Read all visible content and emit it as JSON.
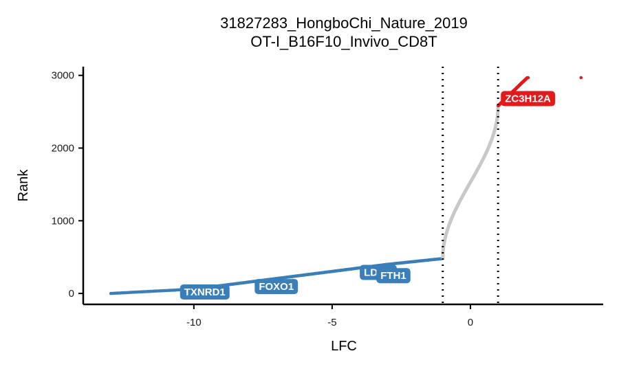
{
  "chart_data": {
    "type": "scatter",
    "title": "31827283_HongboChi_Nature_2019",
    "subtitle": "OT-I_B16F10_Invivo_CD8T",
    "xlabel": "LFC",
    "ylabel": "Rank",
    "xlim": [
      -14,
      4.8
    ],
    "ylim": [
      -150,
      3120
    ],
    "xticks": [
      -10,
      -5,
      0
    ],
    "yticks": [
      0,
      1000,
      2000,
      3000
    ],
    "grid": false,
    "legend": "none",
    "n_points": 2970,
    "thresholds": [
      -1,
      1
    ],
    "colors": {
      "down": "#3a7fb9",
      "neutral": "#c8c8c8",
      "up": "#e31a1c"
    },
    "series": [
      {
        "group": "down",
        "x_range": [
          -13,
          -1
        ],
        "rank_range": [
          0,
          480
        ],
        "count": 481
      },
      {
        "group": "neutral",
        "x_range": [
          -1,
          1
        ],
        "rank_range": [
          481,
          2580
        ],
        "count": 2100
      },
      {
        "group": "up",
        "x_range": [
          1,
          4
        ],
        "rank_range": [
          2581,
          2969
        ],
        "count": 389
      }
    ],
    "labels": [
      {
        "text": "TXNRD1",
        "x": -10.5,
        "y": 20,
        "group": "down"
      },
      {
        "text": "FOXO1",
        "x": -7.8,
        "y": 95,
        "group": "down"
      },
      {
        "text": "LDHA",
        "x": -4.0,
        "y": 290,
        "group": "down"
      },
      {
        "text": "FTH1",
        "x": -3.4,
        "y": 245,
        "group": "down"
      },
      {
        "text": "ZC3H12A",
        "x": 1.1,
        "y": 2680,
        "group": "up"
      }
    ]
  }
}
